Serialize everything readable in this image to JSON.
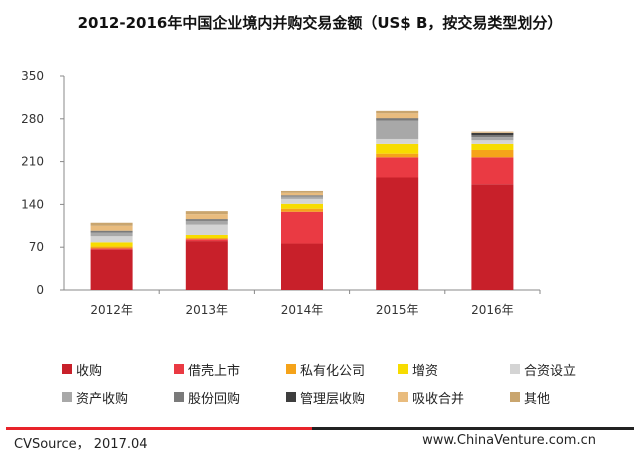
{
  "title": "2012-2016年中国企业境内并购交易金额（US$ B，按交易类型划分）",
  "chart_data": {
    "type": "bar",
    "stacked": true,
    "title": "2012-2016年中国企业境内并购交易金额（US$ B，按交易类型划分）",
    "categories": [
      "2012年",
      "2013年",
      "2014年",
      "2015年",
      "2016年"
    ],
    "ylim": [
      0,
      350
    ],
    "yticks": [
      0,
      70,
      140,
      210,
      280,
      350
    ],
    "grid": false,
    "legend_position": "bottom",
    "series": [
      {
        "name": "收购",
        "color": "#c8202a",
        "values": [
          66,
          80,
          76,
          184,
          173
        ]
      },
      {
        "name": "借壳上市",
        "color": "#ea3a43",
        "values": [
          2,
          3,
          52,
          33,
          44
        ]
      },
      {
        "name": "私有化公司",
        "color": "#f5a31a",
        "values": [
          3,
          2,
          5,
          6,
          12
        ]
      },
      {
        "name": "增资",
        "color": "#f7dc00",
        "values": [
          7,
          5,
          8,
          16,
          10
        ]
      },
      {
        "name": "合资设立",
        "color": "#d4d4d4",
        "values": [
          10,
          17,
          8,
          8,
          6
        ]
      },
      {
        "name": "资产收购",
        "color": "#a8a8a8",
        "values": [
          6,
          6,
          4,
          30,
          5
        ]
      },
      {
        "name": "股份回购",
        "color": "#7a7a7a",
        "values": [
          3,
          3,
          2,
          3,
          3
        ]
      },
      {
        "name": "管理层收购",
        "color": "#3e3e3e",
        "values": [
          0,
          0,
          0,
          1,
          4
        ]
      },
      {
        "name": "吸收合并",
        "color": "#e9bc7e",
        "values": [
          8,
          8,
          4,
          8,
          1
        ]
      },
      {
        "name": "其他",
        "color": "#c9a56e",
        "values": [
          5,
          5,
          3,
          4,
          1
        ]
      }
    ]
  },
  "footer": {
    "source": "CVSource，  2017.04",
    "site": "www.ChinaVenture.com.cn",
    "line_red": "#e8232a",
    "line_dark": "#222222"
  }
}
